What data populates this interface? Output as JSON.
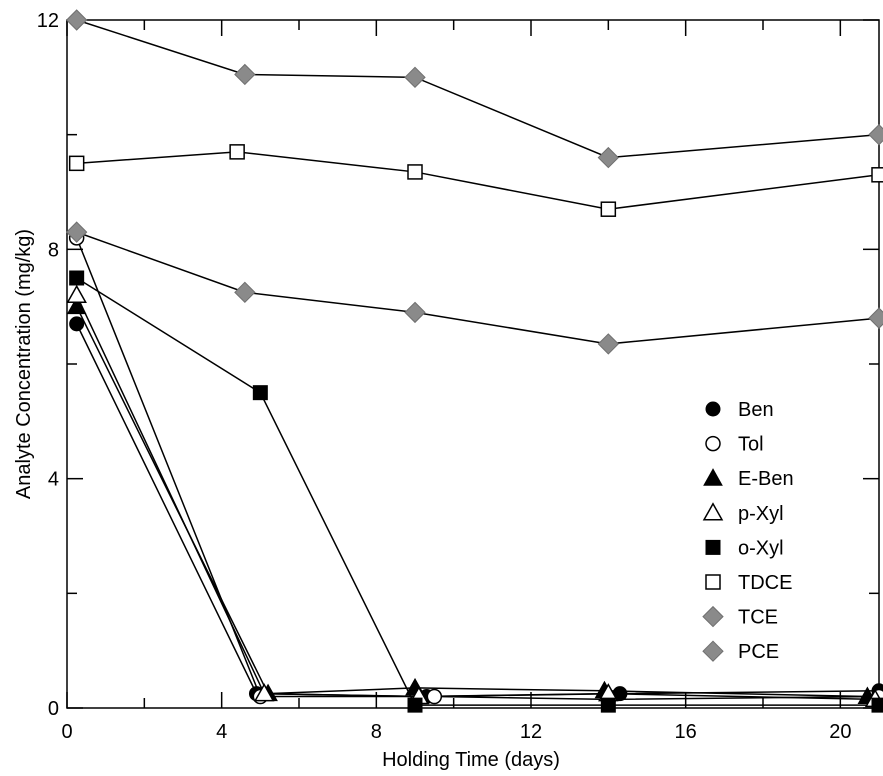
{
  "chart_data": {
    "type": "scatter",
    "xlabel": "Holding Time (days)",
    "ylabel": "Analyte Concentration (mg/kg)",
    "xlim": [
      0,
      21
    ],
    "ylim": [
      0,
      12
    ],
    "xticks": [
      0,
      4,
      8,
      12,
      16,
      20
    ],
    "yticks": [
      0,
      4,
      8,
      12
    ],
    "x_tick_labels": [
      "0",
      "4",
      "8",
      "12",
      "16",
      "20"
    ],
    "y_tick_labels": [
      "0",
      "4",
      "8",
      "12"
    ],
    "grid": false,
    "legend_placement": "lower-right",
    "series": [
      {
        "name": "Ben",
        "marker": "circle-filled",
        "color": "#000000",
        "x": [
          0.25,
          4.9,
          9.3,
          14.3,
          21.0
        ],
        "y": [
          6.7,
          0.25,
          0.2,
          0.25,
          0.3
        ]
      },
      {
        "name": "Tol",
        "marker": "circle-open",
        "color": "#000000",
        "x": [
          0.25,
          5.0,
          9.5,
          14.0,
          21.0
        ],
        "y": [
          8.2,
          0.2,
          0.2,
          0.15,
          0.2
        ]
      },
      {
        "name": "E-Ben",
        "marker": "triangle-filled",
        "color": "#000000",
        "x": [
          0.25,
          5.2,
          9.0,
          13.9,
          20.7
        ],
        "y": [
          7.0,
          0.25,
          0.35,
          0.3,
          0.2
        ]
      },
      {
        "name": "p-Xyl",
        "marker": "triangle-open",
        "color": "#000000",
        "x": [
          0.25,
          5.1,
          9.1,
          14.0,
          20.9
        ],
        "y": [
          7.2,
          0.25,
          0.2,
          0.25,
          0.15
        ]
      },
      {
        "name": "o-Xyl",
        "marker": "square-filled",
        "color": "#000000",
        "x": [
          0.25,
          5.0,
          9.0,
          14.0,
          21.0
        ],
        "y": [
          7.5,
          5.5,
          0.05,
          0.05,
          0.05
        ]
      },
      {
        "name": "TDCE",
        "marker": "square-open",
        "color": "#000000",
        "x": [
          0.25,
          4.4,
          9.0,
          14.0,
          21.0
        ],
        "y": [
          9.5,
          9.7,
          9.35,
          8.7,
          9.3
        ]
      },
      {
        "name": "TCE",
        "marker": "diamond",
        "color": "#8a8a8a",
        "x": [
          0.25,
          4.6,
          9.0,
          14.0,
          21.0
        ],
        "y": [
          8.3,
          7.25,
          6.9,
          6.35,
          6.8
        ]
      },
      {
        "name": "PCE",
        "marker": "diamond",
        "color": "#8a8a8a",
        "x": [
          0.25,
          4.6,
          9.0,
          14.0,
          21.0
        ],
        "y": [
          12.0,
          11.05,
          11.0,
          9.6,
          10.0
        ]
      }
    ]
  }
}
